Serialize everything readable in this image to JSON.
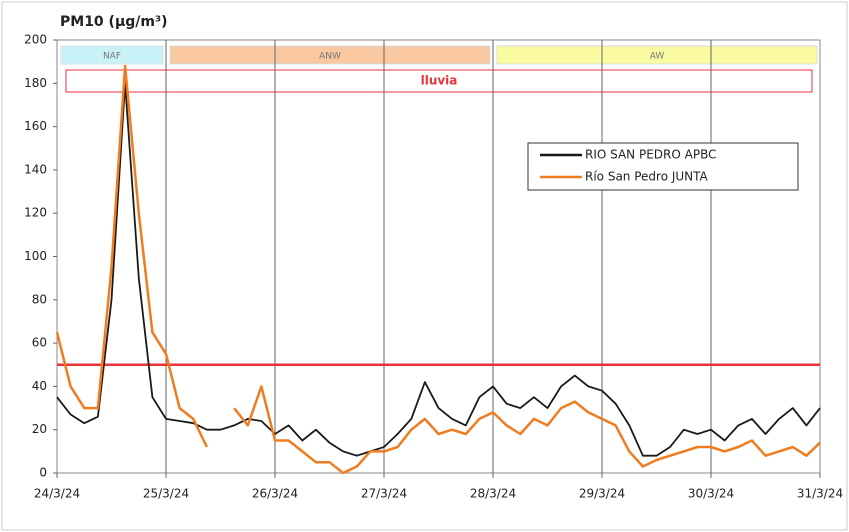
{
  "chart_data": {
    "type": "line",
    "title": "PM10 (µg/m³)",
    "categories": [
      "24/3/24",
      null,
      null,
      null,
      null,
      null,
      null,
      null,
      "25/3/24",
      null,
      null,
      null,
      null,
      null,
      null,
      null,
      "26/3/24",
      null,
      null,
      null,
      null,
      null,
      null,
      null,
      "27/3/24",
      null,
      null,
      null,
      null,
      null,
      null,
      null,
      "28/3/24",
      null,
      null,
      null,
      null,
      null,
      null,
      null,
      "29/3/24",
      null,
      null,
      null,
      null,
      null,
      null,
      null,
      "30/3/24",
      null,
      null,
      null,
      null,
      null,
      null,
      null,
      "31/3/24"
    ],
    "series": [
      {
        "name": "RIO SAN PEDRO APBC",
        "color": "#1a1a1a",
        "values": [
          35,
          27,
          23,
          26,
          80,
          180,
          90,
          35,
          25,
          24,
          23,
          20,
          20,
          22,
          25,
          24,
          18,
          22,
          15,
          20,
          14,
          10,
          8,
          10,
          12,
          18,
          25,
          42,
          30,
          25,
          22,
          35,
          40,
          32,
          30,
          35,
          30,
          40,
          45,
          40,
          38,
          32,
          22,
          8,
          8,
          12,
          20,
          18,
          20,
          15,
          22,
          25,
          18,
          25,
          30,
          22,
          30
        ]
      },
      {
        "name": "Río San Pedro JUNTA",
        "color": "#f07c20",
        "values": [
          65,
          40,
          30,
          30,
          95,
          188,
          120,
          65,
          55,
          30,
          25,
          12,
          null,
          30,
          22,
          40,
          15,
          15,
          10,
          5,
          5,
          0,
          3,
          10,
          10,
          12,
          20,
          25,
          18,
          20,
          18,
          25,
          28,
          22,
          18,
          25,
          22,
          30,
          33,
          28,
          25,
          22,
          10,
          3,
          6,
          8,
          10,
          12,
          12,
          10,
          12,
          15,
          8,
          10,
          12,
          8,
          14
        ]
      }
    ],
    "ylim": [
      0,
      200
    ],
    "yticks": [
      0,
      20,
      40,
      60,
      80,
      100,
      120,
      140,
      160,
      180,
      200
    ],
    "threshold": {
      "value": 50,
      "color": "#e8323c"
    },
    "bands": [
      {
        "label": "NAF",
        "from": "24/3/24",
        "to": "25/3/24",
        "color": "#c8f2f8"
      },
      {
        "label": "ANW",
        "from": "25/3/24",
        "to": "28/3/24",
        "color": "#f9c8a0"
      },
      {
        "label": "AW",
        "from": "28/3/24",
        "to": "31/3/24",
        "color": "#fafaa0"
      }
    ],
    "rain": {
      "label": "lluvia",
      "from": "24/3/24",
      "to": "31/3/24",
      "color": "#e8323c"
    },
    "grid": true,
    "legend": "upper right"
  }
}
